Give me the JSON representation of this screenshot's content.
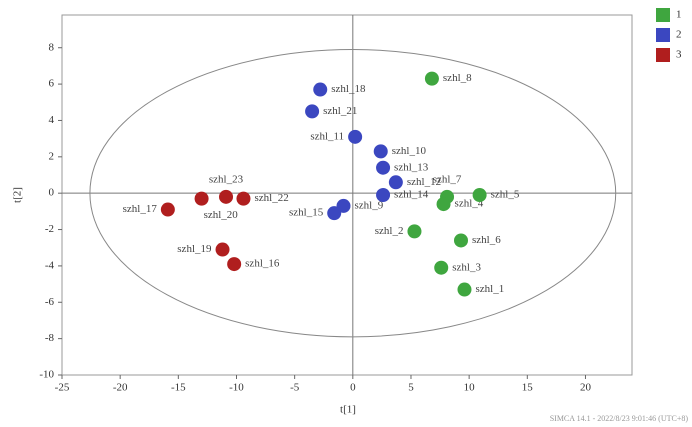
{
  "chart_data": {
    "type": "scatter",
    "x_label": "t[1]",
    "y_label": "t[2]",
    "footer": "SIMCA 14.1 - 2022/8/23 9:01:46 (UTC+8)",
    "xlim": [
      -25,
      24
    ],
    "ylim": [
      -10,
      9.8
    ],
    "xticks": [
      -25,
      -20,
      -15,
      -10,
      -5,
      0,
      5,
      10,
      15,
      20
    ],
    "yticks": [
      -10,
      -8,
      -6,
      -4,
      -2,
      0,
      2,
      4,
      6,
      8
    ],
    "ellipse": {
      "rx": 22.6,
      "ry": 7.9
    },
    "legend": "top-right",
    "series": [
      {
        "name": "1",
        "color": "#3fa63f",
        "labels": [
          "szhl_8",
          "szhl_7",
          "szhl_4",
          "szhl_5",
          "szhl_2",
          "szhl_6",
          "szhl_3",
          "szhl_1"
        ],
        "x": [
          6.8,
          8.1,
          7.8,
          10.9,
          5.3,
          9.3,
          7.6,
          9.6
        ],
        "values": [
          6.3,
          -0.2,
          -0.6,
          -0.1,
          -2.1,
          -2.6,
          -4.1,
          -5.3
        ]
      },
      {
        "name": "2",
        "color": "#3b47c0",
        "labels": [
          "szhl_18",
          "szhl_21",
          "szhl_11",
          "szhl_10",
          "szhl_13",
          "szhl_12",
          "szhl_9",
          "szhl_15",
          "szhl_14"
        ],
        "x": [
          -2.8,
          -3.5,
          0.2,
          2.4,
          2.6,
          3.7,
          -0.8,
          -1.6,
          2.6
        ],
        "values": [
          5.7,
          4.5,
          3.1,
          2.3,
          1.4,
          0.6,
          -0.7,
          -1.1,
          -0.1
        ]
      },
      {
        "name": "3",
        "color": "#b01e1e",
        "labels": [
          "szhl_17",
          "szhl_20",
          "szhl_23",
          "szhl_22",
          "szhl_19",
          "szhl_16"
        ],
        "x": [
          -15.9,
          -13,
          -10.9,
          -9.4,
          -11.2,
          -10.2
        ],
        "values": [
          -0.9,
          -0.3,
          -0.2,
          -0.3,
          -3.1,
          -3.9
        ]
      }
    ]
  }
}
